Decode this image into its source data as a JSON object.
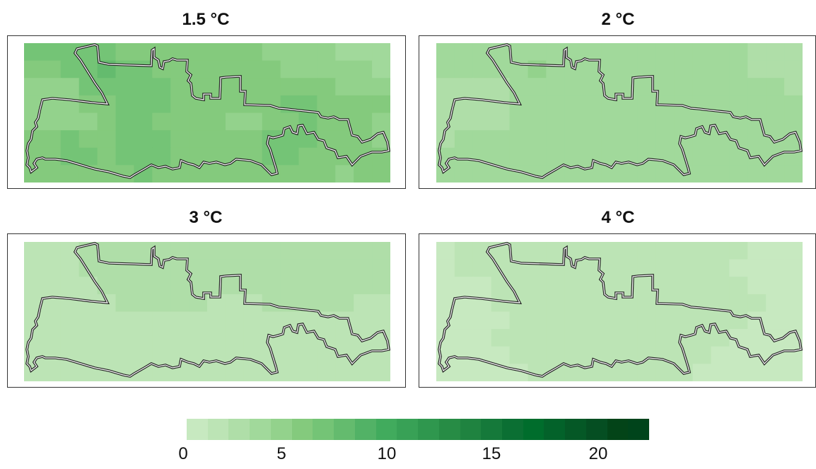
{
  "panels": [
    {
      "title": "1.5 °C",
      "mean": 5.2,
      "cells": [
        [
          6.0,
          6.3,
          6.5,
          6.6,
          6.2,
          5.8,
          5.6,
          5.4,
          5.2,
          5.4,
          5.6,
          5.3,
          5.0,
          4.7,
          4.4,
          4.2,
          4.0,
          3.8,
          3.6,
          3.6
        ],
        [
          5.6,
          5.7,
          6.3,
          6.8,
          7.0,
          6.6,
          6.2,
          5.8,
          5.6,
          5.7,
          5.9,
          5.5,
          5.2,
          5.0,
          4.8,
          4.6,
          4.3,
          4.1,
          4.0,
          3.8
        ],
        [
          4.2,
          4.1,
          4.2,
          6.6,
          6.9,
          6.8,
          6.5,
          6.0,
          5.6,
          5.4,
          5.7,
          5.6,
          5.3,
          5.1,
          5.4,
          5.6,
          5.2,
          4.8,
          4.5,
          4.2
        ],
        [
          4.6,
          4.4,
          4.8,
          5.2,
          5.9,
          6.4,
          6.5,
          6.1,
          5.6,
          5.2,
          5.4,
          5.5,
          5.4,
          5.2,
          6.0,
          6.3,
          5.8,
          5.3,
          5.6,
          5.1
        ],
        [
          4.0,
          4.3,
          4.7,
          4.7,
          5.0,
          6.1,
          6.2,
          5.8,
          5.5,
          5.2,
          5.0,
          4.9,
          4.9,
          5.1,
          5.7,
          6.0,
          5.8,
          5.4,
          5.4,
          4.8
        ],
        [
          5.4,
          5.7,
          6.0,
          5.8,
          5.8,
          6.0,
          6.4,
          6.2,
          5.9,
          5.4,
          5.2,
          5.3,
          5.6,
          6.0,
          6.4,
          6.0,
          5.6,
          5.2,
          5.0,
          4.9
        ],
        [
          5.6,
          5.8,
          6.0,
          6.0,
          5.9,
          6.1,
          6.3,
          6.1,
          5.7,
          5.4,
          5.3,
          5.5,
          5.8,
          6.1,
          6.2,
          5.8,
          5.4,
          5.0,
          5.6,
          5.8
        ],
        [
          5.5,
          5.6,
          5.6,
          5.7,
          5.8,
          5.9,
          6.0,
          5.9,
          5.7,
          5.5,
          5.3,
          5.4,
          5.6,
          5.8,
          5.9,
          5.6,
          5.3,
          4.9,
          5.1,
          5.4
        ]
      ]
    },
    {
      "title": "2 °C",
      "mean": 3.5,
      "cells": [
        [
          3.4,
          3.4,
          3.5,
          3.6,
          3.6,
          3.5,
          3.4,
          3.4,
          3.3,
          3.5,
          3.6,
          3.5,
          3.4,
          3.3,
          3.2,
          3.1,
          3.0,
          2.9,
          2.8,
          2.8
        ],
        [
          3.0,
          3.0,
          3.2,
          3.6,
          3.9,
          4.0,
          3.9,
          3.7,
          3.5,
          3.6,
          3.8,
          3.7,
          3.5,
          3.4,
          3.2,
          3.1,
          3.0,
          2.9,
          2.9,
          2.8
        ],
        [
          2.0,
          2.0,
          2.0,
          2.2,
          3.6,
          3.9,
          3.8,
          3.6,
          3.4,
          3.3,
          3.5,
          3.5,
          3.4,
          3.3,
          3.4,
          3.5,
          3.3,
          3.2,
          3.0,
          2.9
        ],
        [
          2.2,
          2.1,
          2.1,
          2.6,
          3.3,
          3.7,
          3.8,
          3.6,
          3.4,
          3.2,
          3.3,
          3.4,
          3.4,
          3.3,
          3.6,
          3.8,
          3.6,
          3.3,
          3.5,
          3.3
        ],
        [
          2.1,
          2.2,
          2.4,
          2.8,
          3.1,
          3.5,
          3.6,
          3.5,
          3.3,
          3.2,
          3.1,
          3.1,
          3.1,
          3.2,
          3.5,
          3.7,
          3.6,
          3.4,
          3.4,
          3.1
        ],
        [
          2.8,
          3.0,
          3.2,
          3.3,
          3.4,
          3.5,
          3.7,
          3.6,
          3.5,
          3.3,
          3.2,
          3.2,
          3.4,
          3.6,
          3.8,
          3.6,
          3.4,
          3.2,
          3.1,
          3.1
        ],
        [
          3.0,
          3.1,
          3.3,
          3.4,
          3.4,
          3.5,
          3.6,
          3.5,
          3.4,
          3.3,
          3.2,
          3.3,
          3.5,
          3.6,
          3.7,
          3.5,
          3.3,
          3.1,
          3.3,
          3.4
        ],
        [
          3.0,
          3.1,
          3.2,
          3.3,
          3.4,
          3.4,
          3.5,
          3.5,
          3.4,
          3.3,
          3.2,
          3.3,
          3.4,
          3.5,
          3.5,
          3.4,
          3.2,
          3.0,
          3.1,
          3.2
        ]
      ]
    },
    {
      "title": "3 °C",
      "mean": 2.0,
      "cells": [
        [
          1.5,
          1.6,
          1.9,
          2.2,
          2.4,
          2.5,
          2.6,
          2.6,
          2.5,
          2.6,
          2.4,
          2.2,
          2.1,
          2.4,
          2.6,
          2.6,
          2.5,
          2.4,
          2.3,
          2.3
        ],
        [
          1.5,
          1.6,
          1.8,
          2.0,
          2.2,
          2.4,
          2.7,
          2.8,
          2.7,
          2.6,
          2.4,
          2.3,
          2.2,
          2.6,
          2.8,
          2.7,
          2.6,
          2.5,
          2.4,
          2.3
        ],
        [
          1.2,
          1.2,
          1.3,
          1.5,
          2.0,
          2.3,
          2.6,
          2.8,
          2.7,
          2.5,
          2.3,
          2.2,
          2.1,
          2.5,
          2.7,
          2.6,
          2.5,
          2.4,
          2.3,
          2.2
        ],
        [
          1.2,
          1.2,
          1.2,
          1.4,
          1.7,
          2.0,
          2.2,
          2.3,
          2.2,
          2.0,
          1.9,
          1.9,
          1.9,
          2.0,
          2.1,
          2.1,
          2.1,
          2.0,
          1.9,
          1.8
        ],
        [
          1.2,
          1.2,
          1.3,
          1.4,
          1.6,
          1.8,
          1.9,
          1.9,
          1.8,
          1.7,
          1.7,
          1.8,
          1.8,
          1.9,
          1.9,
          1.9,
          1.8,
          1.7,
          1.7,
          1.6
        ],
        [
          1.4,
          1.4,
          1.5,
          1.6,
          1.7,
          1.8,
          1.9,
          1.9,
          1.8,
          1.7,
          1.7,
          1.7,
          1.8,
          1.8,
          1.9,
          1.8,
          1.7,
          1.6,
          1.6,
          1.6
        ],
        [
          1.5,
          1.5,
          1.5,
          1.6,
          1.6,
          1.7,
          1.8,
          1.8,
          1.7,
          1.7,
          1.6,
          1.7,
          1.7,
          1.8,
          1.8,
          1.7,
          1.6,
          1.6,
          1.6,
          1.6
        ],
        [
          1.5,
          1.5,
          1.5,
          1.5,
          1.6,
          1.6,
          1.7,
          1.7,
          1.7,
          1.6,
          1.6,
          1.6,
          1.7,
          1.7,
          1.7,
          1.6,
          1.6,
          1.5,
          1.5,
          1.5
        ]
      ]
    },
    {
      "title": "4 °C",
      "mean": 1.0,
      "cells": [
        [
          0.9,
          1.0,
          1.0,
          1.1,
          1.1,
          1.0,
          1.0,
          1.1,
          1.1,
          1.0,
          1.0,
          1.0,
          1.1,
          1.1,
          1.0,
          1.0,
          1.0,
          0.9,
          0.9,
          0.9
        ],
        [
          0.9,
          1.0,
          1.0,
          1.1,
          1.1,
          1.1,
          1.0,
          1.0,
          1.1,
          1.1,
          1.0,
          1.0,
          1.1,
          1.1,
          1.0,
          1.0,
          0.9,
          0.9,
          0.9,
          0.9
        ],
        [
          0.8,
          0.9,
          0.9,
          1.0,
          1.1,
          1.1,
          1.0,
          1.0,
          1.0,
          1.0,
          1.0,
          1.0,
          1.0,
          1.1,
          1.1,
          1.0,
          1.0,
          0.9,
          0.9,
          0.9
        ],
        [
          0.8,
          0.8,
          0.9,
          1.0,
          1.0,
          1.1,
          1.0,
          1.0,
          1.0,
          1.0,
          1.0,
          1.0,
          1.0,
          1.0,
          1.1,
          1.0,
          1.0,
          1.0,
          0.9,
          0.9
        ],
        [
          0.8,
          0.8,
          0.9,
          0.9,
          1.0,
          1.0,
          1.0,
          1.0,
          1.0,
          1.0,
          1.0,
          1.0,
          1.0,
          1.0,
          1.0,
          1.0,
          1.0,
          0.9,
          0.9,
          0.9
        ],
        [
          0.9,
          0.9,
          0.9,
          1.0,
          1.0,
          1.0,
          1.0,
          1.0,
          1.0,
          1.0,
          1.0,
          1.0,
          1.0,
          1.0,
          1.0,
          1.0,
          0.9,
          0.9,
          0.9,
          0.9
        ],
        [
          0.9,
          0.9,
          0.9,
          0.9,
          1.0,
          1.0,
          1.0,
          1.0,
          1.0,
          1.0,
          1.0,
          1.0,
          1.0,
          1.0,
          1.0,
          0.9,
          0.9,
          0.9,
          0.9,
          0.9
        ],
        [
          0.9,
          0.9,
          0.9,
          0.9,
          0.9,
          1.0,
          1.0,
          1.0,
          1.0,
          1.0,
          1.0,
          1.0,
          1.0,
          1.0,
          0.9,
          0.9,
          0.9,
          0.9,
          0.9,
          0.9
        ]
      ]
    }
  ],
  "legend": {
    "min": 0,
    "max": 22,
    "ticks": [
      "0",
      "5",
      "10",
      "15",
      "20"
    ],
    "tick_values": [
      0,
      5,
      10,
      15,
      20
    ],
    "colors": [
      "#c7e9c0",
      "#bce4b5",
      "#afdea8",
      "#a1d99b",
      "#93d28c",
      "#84ca7d",
      "#74c476",
      "#64bb6e",
      "#52b266",
      "#41ab5d",
      "#38a156",
      "#2f974e",
      "#278c45",
      "#1f8340",
      "#15793a",
      "#0b6f33",
      "#006d2c",
      "#03622a",
      "#055826",
      "#054e22",
      "#034418",
      "#00441b"
    ]
  },
  "outline_color": "#222222"
}
